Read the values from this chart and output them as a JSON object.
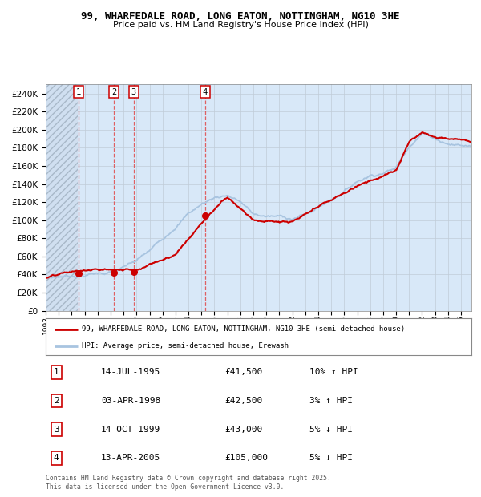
{
  "title": "99, WHARFEDALE ROAD, LONG EATON, NOTTINGHAM, NG10 3HE",
  "subtitle": "Price paid vs. HM Land Registry's House Price Index (HPI)",
  "legend_line1": "99, WHARFEDALE ROAD, LONG EATON, NOTTINGHAM, NG10 3HE (semi-detached house)",
  "legend_line2": "HPI: Average price, semi-detached house, Erewash",
  "footnote": "Contains HM Land Registry data © Crown copyright and database right 2025.\nThis data is licensed under the Open Government Licence v3.0.",
  "transactions": [
    {
      "num": 1,
      "date": "14-JUL-1995",
      "price": 41500,
      "hpi_diff": "10% ↑ HPI",
      "year": 1995.54
    },
    {
      "num": 2,
      "date": "03-APR-1998",
      "price": 42500,
      "hpi_diff": "3% ↑ HPI",
      "year": 1998.25
    },
    {
      "num": 3,
      "date": "14-OCT-1999",
      "price": 43000,
      "hpi_diff": "5% ↓ HPI",
      "year": 1999.79
    },
    {
      "num": 4,
      "date": "13-APR-2005",
      "price": 105000,
      "hpi_diff": "5% ↓ HPI",
      "year": 2005.28
    }
  ],
  "hpi_color": "#a8c4e0",
  "price_color": "#cc0000",
  "marker_color": "#cc0000",
  "vline_color": "#e05050",
  "bg_color": "#d8e8f8",
  "grid_color": "#c0ccd8",
  "ylim": [
    0,
    250000
  ],
  "yticks": [
    0,
    20000,
    40000,
    60000,
    80000,
    100000,
    120000,
    140000,
    160000,
    180000,
    200000,
    220000,
    240000
  ],
  "xlim_start": 1993.0,
  "xlim_end": 2025.8,
  "hpi_key_years": [
    1993,
    1994,
    1995,
    1996,
    1997,
    1998,
    1999,
    2000,
    2001,
    2002,
    2003,
    2004,
    2005,
    2006,
    2007,
    2008,
    2009,
    2010,
    2011,
    2012,
    2013,
    2014,
    2015,
    2016,
    2017,
    2018,
    2019,
    2020,
    2021,
    2022,
    2023,
    2024,
    2025.5
  ],
  "hpi_key_vals": [
    36000,
    37500,
    39000,
    41000,
    43000,
    45000,
    49000,
    55000,
    65000,
    78000,
    95000,
    110000,
    120000,
    128000,
    132000,
    125000,
    110000,
    108000,
    107000,
    106000,
    110000,
    118000,
    128000,
    138000,
    150000,
    158000,
    163000,
    168000,
    195000,
    210000,
    205000,
    200000,
    198000
  ],
  "prop_key_years": [
    1993,
    1995.54,
    1998.25,
    1999.79,
    2003,
    2005.28,
    2007,
    2009,
    2012,
    2014,
    2016,
    2018,
    2020,
    2021,
    2022,
    2024,
    2025.5
  ],
  "prop_key_vals": [
    36000,
    41500,
    42500,
    43000,
    65000,
    105000,
    130000,
    108000,
    105000,
    118000,
    132000,
    148000,
    158000,
    188000,
    200000,
    195000,
    193000
  ]
}
